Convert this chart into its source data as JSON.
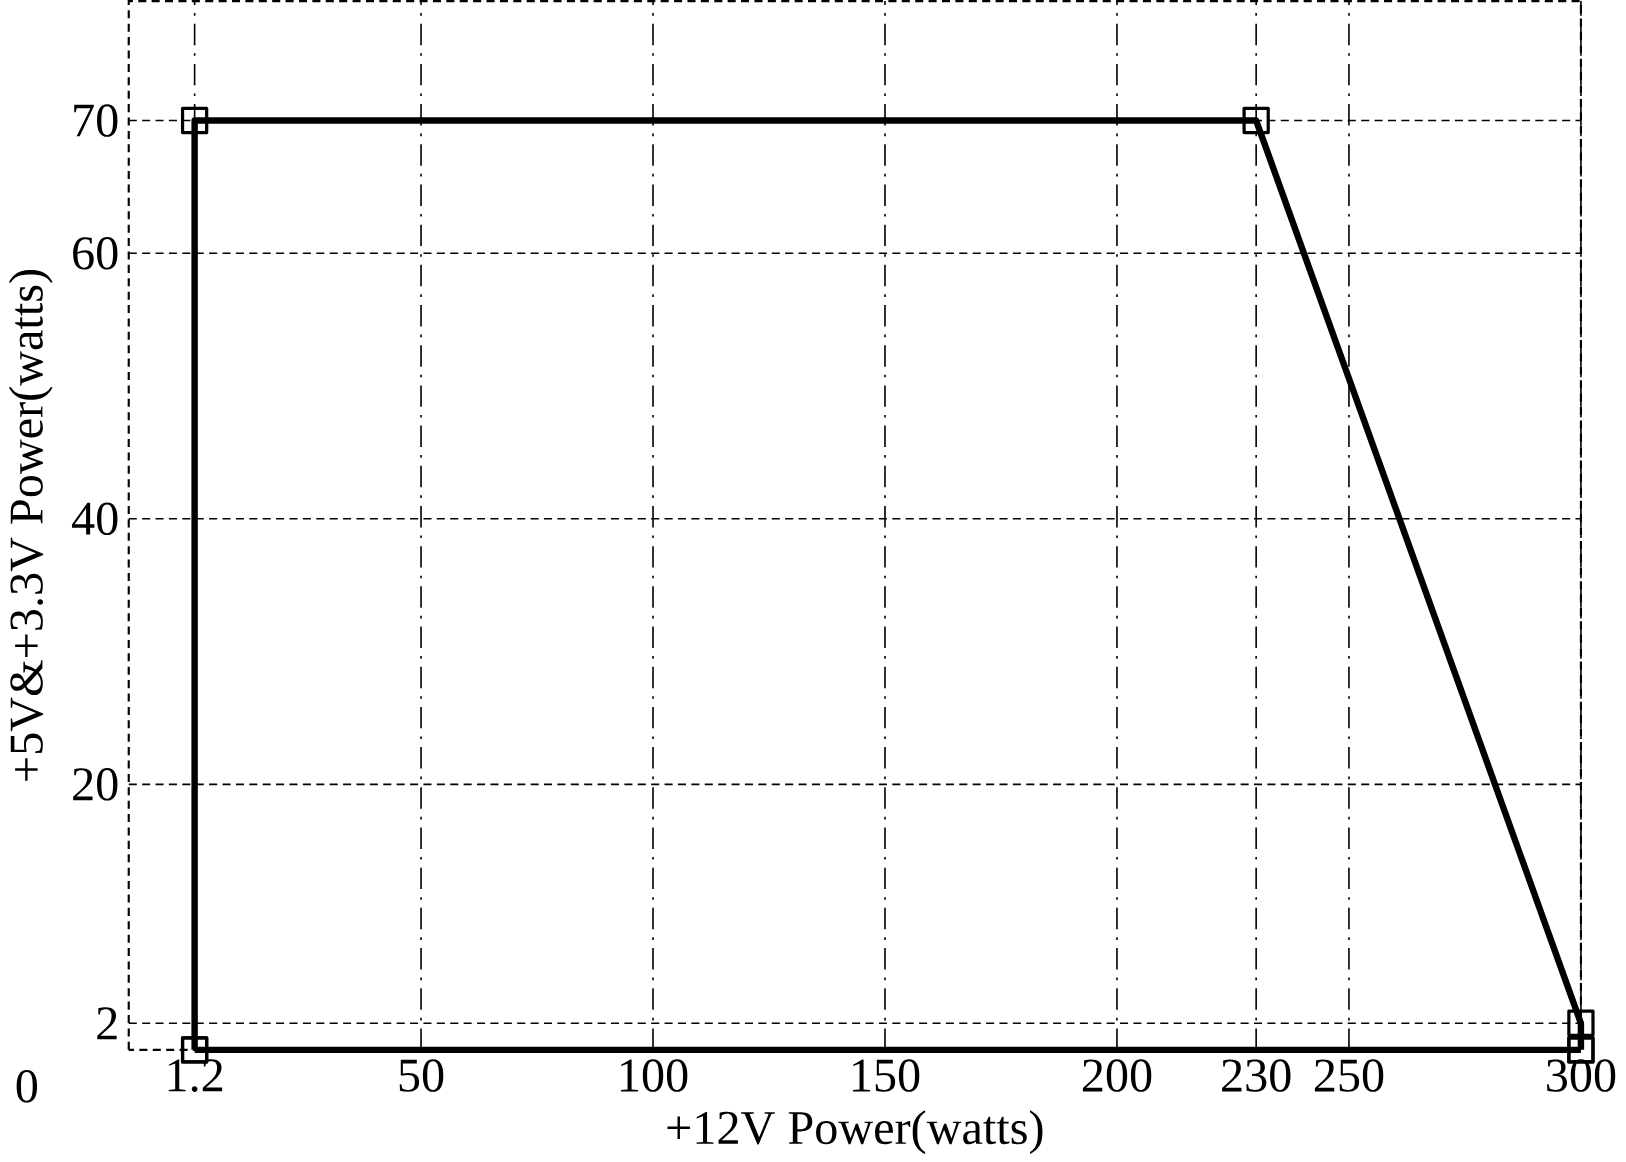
{
  "chart_data": {
    "type": "line",
    "xlabel": "+12V Power(watts)",
    "ylabel": "+5V&+3.3V Power(watts)",
    "series": [
      {
        "color": "#000000",
        "x": [
          1.2,
          1.2,
          230,
          300,
          300
        ],
        "values": [
          0,
          70,
          70,
          2,
          0
        ]
      },
      {
        "color": "#000000",
        "x": [
          1.2,
          300
        ],
        "values": [
          0,
          0
        ]
      }
    ],
    "xlim": [
      -13,
      300
    ],
    "ylim": [
      0,
      79
    ],
    "xticks": [
      1.2,
      50,
      100,
      150,
      200,
      230,
      250,
      300
    ],
    "annotations": [
      "0"
    ],
    "yticks": [
      2,
      20,
      40,
      60,
      70
    ],
    "grid": true,
    "marker": "square",
    "line_style": "solid"
  }
}
